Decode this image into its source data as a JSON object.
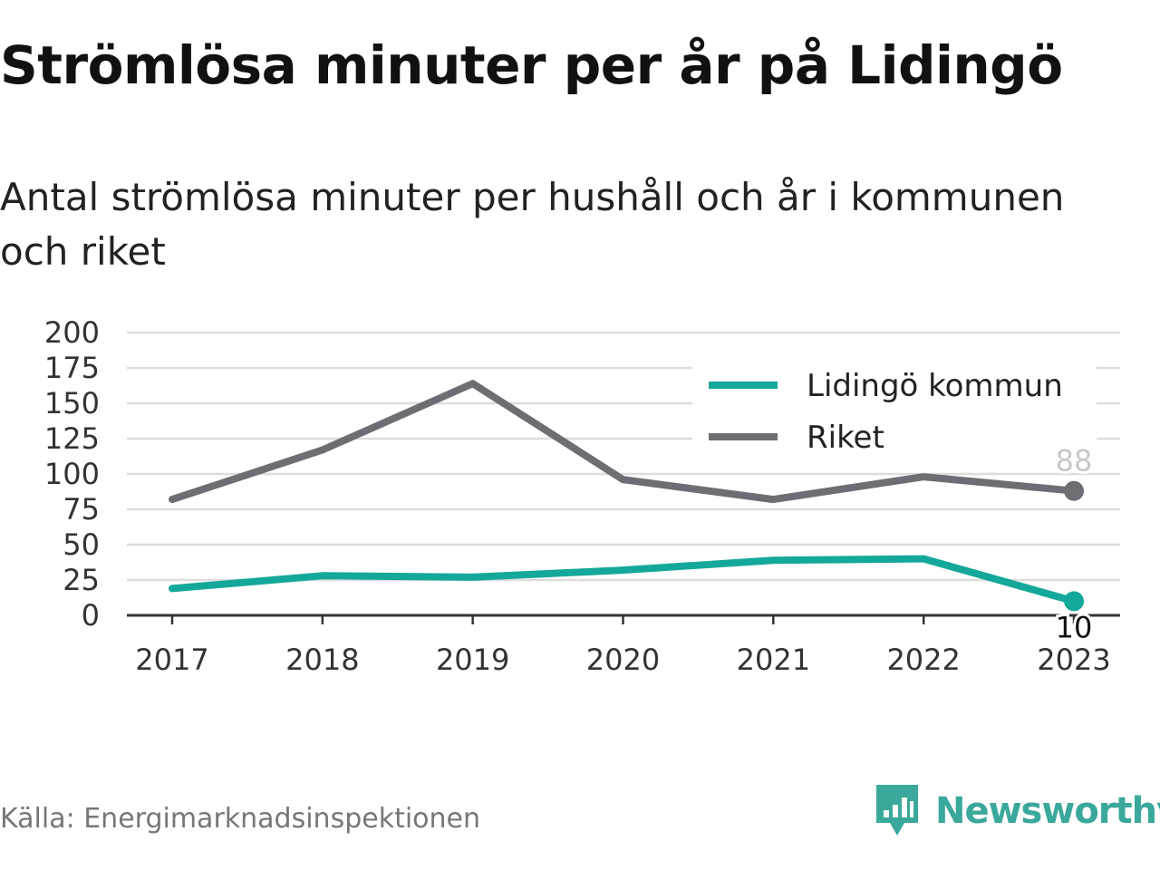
{
  "header": {
    "title": "Strömlösa minuter per år på Lidingö",
    "subtitle": "Antal strömlösa minuter per hushåll och år i kommunen och riket"
  },
  "footer": {
    "source": "Källa: Energimarknadsinspektionen",
    "brand_name": "Newsworthy",
    "brand_icon": "newsworthy-logo-icon"
  },
  "colors": {
    "lidingo": "#14a89a",
    "riket": "#6e6d73",
    "grid": "#dddddd",
    "axis": "#333333",
    "brand": "#3aa89b"
  },
  "chart_data": {
    "type": "line",
    "categories": [
      "2017",
      "2018",
      "2019",
      "2020",
      "2021",
      "2022",
      "2023"
    ],
    "yticks": [
      "0",
      "25",
      "50",
      "75",
      "100",
      "125",
      "150",
      "175",
      "200"
    ],
    "ylim": [
      0,
      200
    ],
    "grid": true,
    "legend_position": "top-right",
    "series": [
      {
        "name": "Lidingö kommun",
        "values": [
          19,
          28,
          27,
          32,
          39,
          40,
          10
        ],
        "end_label": "10",
        "color": "#14a89a"
      },
      {
        "name": "Riket",
        "values": [
          82,
          117,
          164,
          96,
          82,
          98,
          88
        ],
        "end_label": "88",
        "color": "#6e6d73"
      }
    ]
  }
}
